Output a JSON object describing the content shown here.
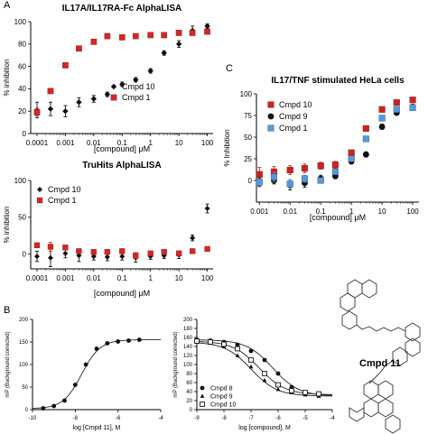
{
  "panel_letters": {
    "a": "A",
    "b": "B",
    "c": "C"
  },
  "structure_label": "Cmpd 11",
  "chart_data": [
    {
      "id": "a1",
      "type": "scatter",
      "title": "IL17A/IL17RA-Fc AlphaLISA",
      "xlabel": "[compound] μM",
      "ylabel": "% inhibition",
      "xscale": "log",
      "xlim": [
        6e-05,
        160
      ],
      "ylim": [
        0,
        100
      ],
      "xticks": [
        "0.0001",
        "0.001",
        "0.01",
        "0.1",
        "1",
        "10",
        "100"
      ],
      "xtick_values": [
        0.0001,
        0.001,
        0.01,
        0.1,
        1,
        10,
        100
      ],
      "yticks": [
        "0",
        "20",
        "40",
        "60",
        "80",
        "100"
      ],
      "ytick_values": [
        0,
        20,
        40,
        60,
        80,
        100
      ],
      "legend_position": "bottom-right",
      "series": [
        {
          "name": "Cmpd 10",
          "marker": "diamond",
          "color": "#111111",
          "x": [
            0.0001,
            0.0003,
            0.001,
            0.003,
            0.01,
            0.03,
            0.1,
            0.3,
            1,
            3,
            10,
            30,
            100
          ],
          "y": [
            21,
            22,
            20,
            28,
            31,
            35,
            44,
            48,
            56,
            72,
            80,
            92,
            96
          ],
          "err": [
            7,
            6,
            5,
            4,
            3,
            2,
            2,
            2,
            2,
            2,
            3,
            4,
            2
          ]
        },
        {
          "name": "Cmpd 1",
          "marker": "square",
          "color": "#dd2222",
          "x": [
            0.0001,
            0.0003,
            0.001,
            0.003,
            0.01,
            0.03,
            0.1,
            0.3,
            1,
            3,
            10,
            30,
            100
          ],
          "y": [
            19,
            38,
            61,
            76,
            82,
            87,
            86,
            87,
            88,
            88,
            90,
            90,
            91
          ],
          "err": [
            3,
            2,
            2,
            2,
            2,
            2,
            2,
            2,
            2,
            2,
            2,
            2,
            2
          ]
        }
      ]
    },
    {
      "id": "a2",
      "type": "scatter",
      "title": "TruHits AlphaLISA",
      "xlabel": "[compound] μM",
      "ylabel": "% inhibition",
      "xscale": "log",
      "xlim": [
        6e-05,
        160
      ],
      "ylim": [
        -20,
        100
      ],
      "xticks": [
        "0.0001",
        "0.001",
        "0.01",
        "0.1",
        "1",
        "10",
        "100"
      ],
      "xtick_values": [
        0.0001,
        0.001,
        0.01,
        0.1,
        1,
        10,
        100
      ],
      "yticks": [
        "0",
        "50",
        "100"
      ],
      "ytick_values": [
        0,
        50,
        100
      ],
      "legend_position": "top-left",
      "series": [
        {
          "name": "Cmpd 10",
          "marker": "diamond",
          "color": "#111111",
          "x": [
            0.0001,
            0.0003,
            0.001,
            0.003,
            0.01,
            0.03,
            0.1,
            0.3,
            1,
            3,
            10,
            30,
            100
          ],
          "y": [
            -3,
            -5,
            1,
            -2,
            -3,
            -4,
            -3,
            -5,
            -3,
            -2,
            -1,
            22,
            62
          ],
          "err": [
            7,
            12,
            6,
            8,
            5,
            5,
            5,
            6,
            4,
            4,
            5,
            4,
            6
          ]
        },
        {
          "name": "Cmpd 1",
          "marker": "square",
          "color": "#dd2222",
          "x": [
            0.0001,
            0.0003,
            0.001,
            0.003,
            0.01,
            0.03,
            0.1,
            0.3,
            1,
            3,
            10,
            30,
            100
          ],
          "y": [
            12,
            10,
            9,
            4,
            3,
            3,
            4,
            -2,
            1,
            3,
            1,
            4,
            7
          ],
          "err": [
            3,
            6,
            3,
            2,
            2,
            2,
            2,
            4,
            2,
            2,
            2,
            2,
            2
          ]
        }
      ]
    },
    {
      "id": "c",
      "type": "scatter",
      "title": "IL17/TNF stimulated HeLa cells",
      "xlabel": "[compound] μM",
      "ylabel": "% Inhibition",
      "xscale": "log",
      "xlim": [
        0.0008,
        160
      ],
      "ylim": [
        -25,
        100
      ],
      "xticks": [
        "0.001",
        "0.01",
        "0.1",
        "1",
        "10",
        "100"
      ],
      "xtick_values": [
        0.001,
        0.01,
        0.1,
        1,
        10,
        100
      ],
      "yticks": [
        "0",
        "25",
        "50",
        "75",
        "100"
      ],
      "ytick_values": [
        0,
        25,
        50,
        75,
        100
      ],
      "legend_position": "top-left",
      "series": [
        {
          "name": "Cmpd 10",
          "marker": "square",
          "color": "#cc2222",
          "x": [
            0.001,
            0.003,
            0.01,
            0.03,
            0.1,
            0.3,
            1,
            3,
            10,
            30,
            100
          ],
          "y": [
            7,
            10,
            12,
            14,
            17,
            18,
            32,
            60,
            82,
            90,
            93
          ],
          "err": [
            8,
            6,
            5,
            5,
            4,
            4,
            3,
            3,
            2,
            2,
            2
          ]
        },
        {
          "name": "Cmpd 9",
          "marker": "circle",
          "color": "#111111",
          "x": [
            0.001,
            0.003,
            0.01,
            0.03,
            0.1,
            0.3,
            1,
            3,
            10,
            30,
            100
          ],
          "y": [
            -2,
            0,
            -5,
            -3,
            2,
            5,
            22,
            30,
            62,
            78,
            85
          ],
          "err": [
            5,
            4,
            6,
            5,
            4,
            3,
            3,
            3,
            3,
            2,
            2
          ]
        },
        {
          "name": "Cmpd 1",
          "marker": "square",
          "color": "#5599dd",
          "x": [
            0.001,
            0.003,
            0.01,
            0.03,
            0.1,
            0.3,
            1,
            3,
            10,
            30,
            100
          ],
          "y": [
            -2,
            4,
            -4,
            2,
            0,
            10,
            25,
            48,
            72,
            82,
            84
          ],
          "err": [
            4,
            5,
            5,
            4,
            3,
            3,
            3,
            3,
            3,
            2,
            2
          ]
        }
      ]
    },
    {
      "id": "b1",
      "type": "line",
      "title": "",
      "xlabel": "log [Cmpd 11], M",
      "ylabel": "mP (Background corrected)",
      "xlim": [
        -10,
        -4
      ],
      "ylim": [
        0,
        200
      ],
      "xticks": [
        "-10",
        "-8",
        "-6",
        "-4"
      ],
      "xtick_values": [
        -10,
        -8,
        -6,
        -4
      ],
      "yticks": [
        "0",
        "50",
        "100",
        "150",
        "200"
      ],
      "ytick_values": [
        0,
        50,
        100,
        150,
        200
      ],
      "series": [
        {
          "name": "",
          "marker": "circle",
          "color": "#111111",
          "x": [
            -9.5,
            -9.0,
            -8.5,
            -8.0,
            -7.5,
            -7.0,
            -6.5,
            -6.0,
            -5.5,
            -5.0
          ],
          "y": [
            3,
            8,
            20,
            55,
            100,
            135,
            147,
            151,
            153,
            155
          ],
          "fit": {
            "bottom": 2,
            "top": 155,
            "logEC50": -7.7,
            "hill": 1.0
          }
        }
      ]
    },
    {
      "id": "b2",
      "type": "line",
      "title": "",
      "xlabel": "log [compound], M",
      "ylabel": "mP (Background corrected)",
      "xlim": [
        -9,
        -4
      ],
      "ylim": [
        0,
        200
      ],
      "xticks": [
        "-9",
        "-8",
        "-7",
        "-6",
        "-5",
        "-4"
      ],
      "xtick_values": [
        -9,
        -8,
        -7,
        -6,
        -5,
        -4
      ],
      "yticks": [
        "0",
        "20",
        "40",
        "60",
        "80",
        "100",
        "120",
        "140",
        "160",
        "180",
        "200"
      ],
      "ytick_values": [
        0,
        20,
        40,
        60,
        80,
        100,
        120,
        140,
        160,
        180,
        200
      ],
      "legend_position": "bottom-left",
      "series": [
        {
          "name": "Cmpd 8",
          "marker": "circle",
          "color": "#111111",
          "x": [
            -9.0,
            -8.5,
            -8.0,
            -7.5,
            -7.0,
            -6.5,
            -6.0,
            -5.5,
            -5.0,
            -4.5
          ],
          "y": [
            155,
            153,
            150,
            144,
            130,
            110,
            80,
            50,
            38,
            35
          ],
          "fit": {
            "bottom": 30,
            "top": 155,
            "logEC50": -6.2,
            "hill": -0.9
          }
        },
        {
          "name": "Cmpd 9",
          "marker": "triangle",
          "color": "#111111",
          "x": [
            -9.0,
            -8.5,
            -8.0,
            -7.5,
            -7.0,
            -6.5,
            -6.0,
            -5.5,
            -5.0,
            -4.5
          ],
          "y": [
            150,
            148,
            140,
            120,
            95,
            65,
            45,
            38,
            33,
            30
          ],
          "fit": {
            "bottom": 30,
            "top": 150,
            "logEC50": -7.0,
            "hill": -0.9
          }
        },
        {
          "name": "Cmpd 10",
          "marker": "square-open",
          "color": "#111111",
          "x": [
            -9.0,
            -8.5,
            -8.0,
            -7.5,
            -7.0,
            -6.5,
            -6.0,
            -5.5,
            -5.0,
            -4.5
          ],
          "y": [
            152,
            150,
            145,
            135,
            110,
            80,
            55,
            42,
            38,
            35
          ],
          "fit": {
            "bottom": 33,
            "top": 152,
            "logEC50": -6.7,
            "hill": -0.9
          }
        }
      ]
    }
  ]
}
